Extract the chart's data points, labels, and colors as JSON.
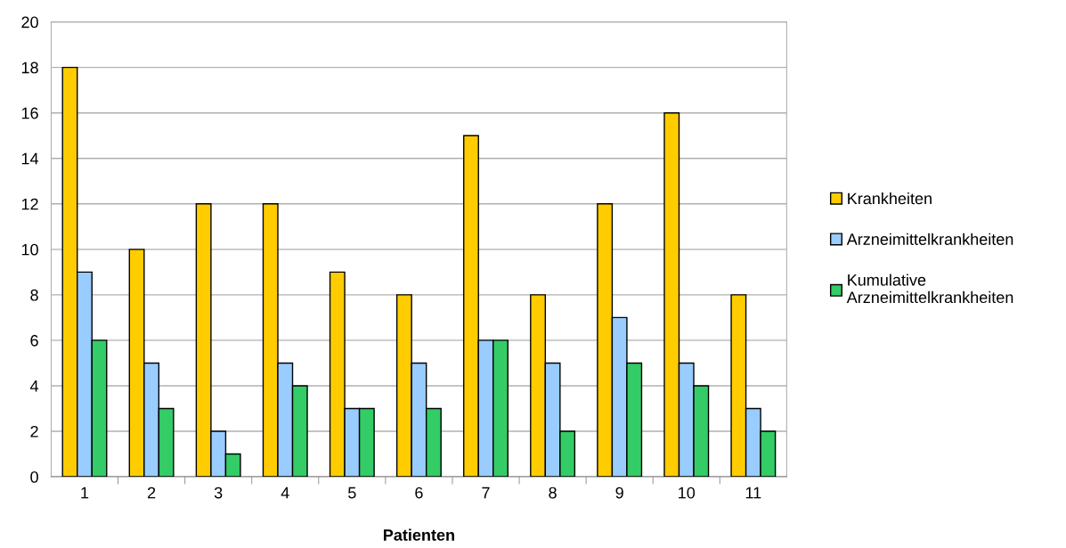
{
  "chart_data": {
    "type": "bar",
    "xlabel": "Patienten",
    "categories": [
      "1",
      "2",
      "3",
      "4",
      "5",
      "6",
      "7",
      "8",
      "9",
      "10",
      "11"
    ],
    "series": [
      {
        "name": "Krankheiten",
        "color": "#ffcc00",
        "values": [
          18,
          10,
          12,
          12,
          9,
          8,
          15,
          8,
          12,
          16,
          8
        ]
      },
      {
        "name": "Arzneimittelkrankheiten",
        "color": "#99ccff",
        "values": [
          9,
          5,
          2,
          5,
          3,
          5,
          6,
          5,
          7,
          5,
          3
        ]
      },
      {
        "name": "Kumulative\nArzneimittelkrankheiten",
        "color": "#33cc66",
        "values": [
          6,
          3,
          1,
          4,
          3,
          3,
          6,
          2,
          5,
          4,
          2
        ]
      }
    ],
    "ylim": [
      0,
      20
    ],
    "yticks": [
      0,
      2,
      4,
      6,
      8,
      10,
      12,
      14,
      16,
      18,
      20
    ],
    "grid": "y",
    "legend": "right"
  }
}
